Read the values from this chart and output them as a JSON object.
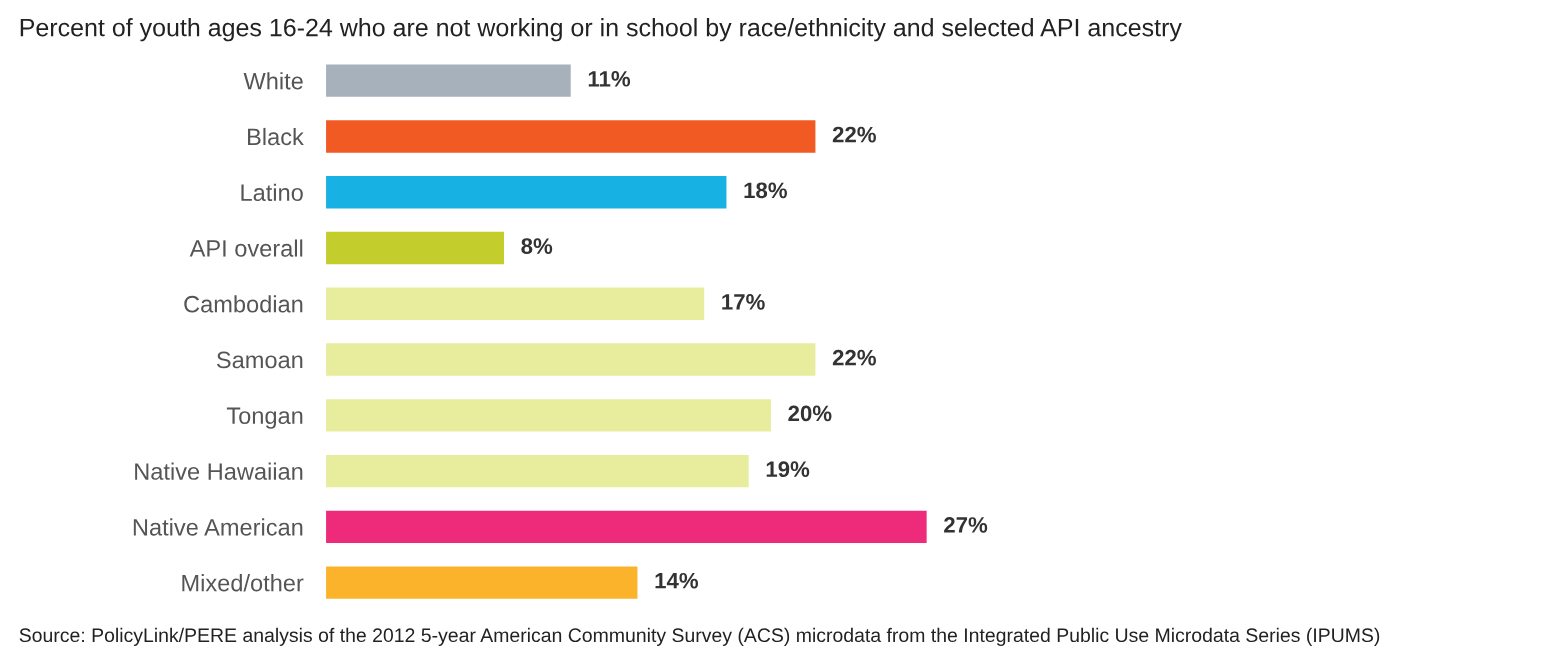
{
  "chart_data": {
    "type": "bar",
    "orientation": "horizontal",
    "title": "Percent of youth ages 16-24 who are not working or in school by race/ethnicity and selected API ancestry",
    "categories": [
      "White",
      "Black",
      "Latino",
      "API overall",
      "Cambodian",
      "Samoan",
      "Tongan",
      "Native Hawaiian",
      "Native American",
      "Mixed/other"
    ],
    "values": [
      11,
      22,
      18,
      8,
      17,
      22,
      20,
      19,
      27,
      14
    ],
    "value_labels": [
      "11%",
      "22%",
      "18%",
      "8%",
      "17%",
      "22%",
      "20%",
      "19%",
      "27%",
      "14%"
    ],
    "colors": [
      "#a7b1bb",
      "#f15a22",
      "#18b1e3",
      "#c3cd2b",
      "#e8ed9e",
      "#e8ed9e",
      "#e8ed9e",
      "#e8ed9e",
      "#ee2a7b",
      "#fbb32c"
    ],
    "annotations": [
      "Source: PolicyLink/PERE analysis of the 2012 5-year American Community Survey (ACS) microdata from the Integrated Public Use Microdata Series (IPUMS)"
    ],
    "grid": false,
    "legend": false
  }
}
